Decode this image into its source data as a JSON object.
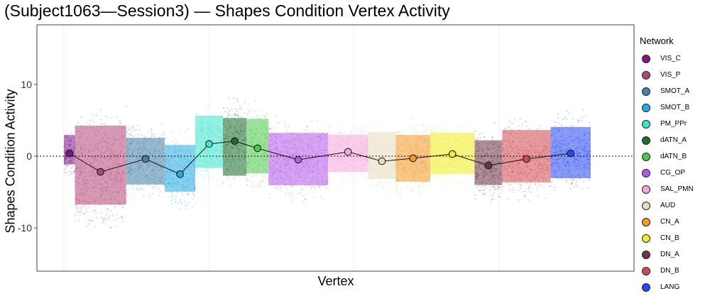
{
  "chart_data": {
    "type": "scatter",
    "title": "(Subject1063—Session3) — Shapes Condition Vertex Activity",
    "xlabel": "Vertex",
    "ylabel": "Shapes Condition Activity",
    "ylim": [
      -16.5,
      18
    ],
    "yticks": [
      -10,
      0,
      10
    ],
    "reference_line_y": 0,
    "legend_title": "Network",
    "legend_position": "right",
    "series": [
      {
        "name": "VIS_C",
        "color": "#7b1a86",
        "mean": 0.4,
        "spread": [
          -1.8,
          3.6
        ]
      },
      {
        "name": "VIS_P",
        "color": "#b34478",
        "mean": -2.2,
        "spread": [
          -8.5,
          6.0
        ]
      },
      {
        "name": "SMOT_A",
        "color": "#4682a6",
        "mean": -0.4,
        "spread": [
          -5.0,
          3.6
        ]
      },
      {
        "name": "SMOT_B",
        "color": "#2aaae2",
        "mean": -2.5,
        "spread": [
          -6.0,
          2.6
        ]
      },
      {
        "name": "PM_PPr",
        "color": "#3ee6cc",
        "mean": 1.7,
        "spread": [
          -2.8,
          6.8
        ]
      },
      {
        "name": "dATN_A",
        "color": "#1c6e2c",
        "mean": 2.1,
        "spread": [
          -4.0,
          6.6
        ]
      },
      {
        "name": "dATN_B",
        "color": "#4ec84a",
        "mean": 1.1,
        "spread": [
          -3.6,
          6.4
        ]
      },
      {
        "name": "CG_OP",
        "color": "#b45ae8",
        "mean": -0.5,
        "spread": [
          -5.2,
          4.4
        ]
      },
      {
        "name": "SAL_PMN",
        "color": "#f7a8dc",
        "mean": 0.6,
        "spread": [
          -3.0,
          3.8
        ]
      },
      {
        "name": "AUD",
        "color": "#e8dcc0",
        "mean": -0.7,
        "spread": [
          -4.2,
          4.4
        ]
      },
      {
        "name": "CN_A",
        "color": "#f39a2a",
        "mean": -0.3,
        "spread": [
          -4.6,
          4.0
        ]
      },
      {
        "name": "CN_B",
        "color": "#f2ec2c",
        "mean": 0.3,
        "spread": [
          -3.4,
          4.2
        ]
      },
      {
        "name": "DN_A",
        "color": "#6c3444",
        "mean": -1.3,
        "spread": [
          -5.0,
          3.2
        ]
      },
      {
        "name": "DN_B",
        "color": "#d24a4e",
        "mean": -0.4,
        "spread": [
          -4.8,
          4.8
        ]
      },
      {
        "name": "LANG",
        "color": "#2848f0",
        "mean": 0.4,
        "spread": [
          -4.2,
          5.2
        ]
      }
    ]
  }
}
